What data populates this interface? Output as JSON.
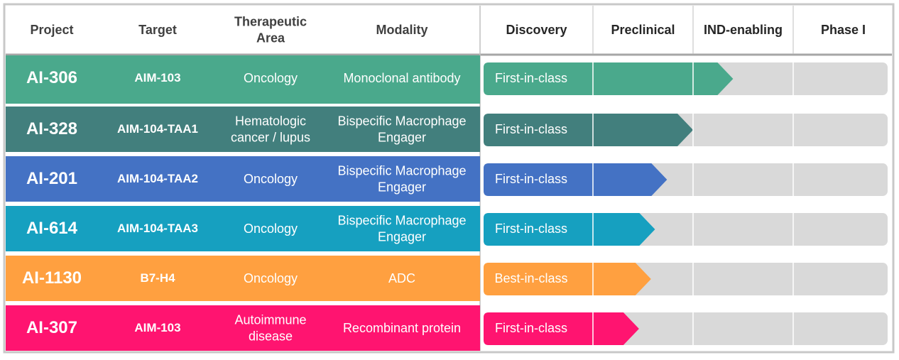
{
  "header": {
    "columns": [
      "Project",
      "Target",
      "Therapeutic\nArea",
      "Modality"
    ],
    "stages": [
      "Discovery",
      "Preclinical",
      "IND-enabling",
      "Phase I"
    ]
  },
  "rows": [
    {
      "project": "AI-306",
      "target": "AIM-103",
      "area": "Oncology",
      "modality": "Monoclonal antibody",
      "status": "First-in-class",
      "progress": 2.4,
      "color": "#4aa98c"
    },
    {
      "project": "AI-328",
      "target": "AIM-104-TAA1",
      "area": "Hematologic\ncancer / lupus",
      "modality": "Bispecific Macrophage\nEngager",
      "status": "First-in-class",
      "progress": 2.0,
      "color": "#427f7d"
    },
    {
      "project": "AI-201",
      "target": "AIM-104-TAA2",
      "area": "Oncology",
      "modality": "Bispecific Macrophage\nEngager",
      "status": "First-in-class",
      "progress": 1.74,
      "color": "#4472c4"
    },
    {
      "project": "AI-614",
      "target": "AIM-104-TAA3",
      "area": "Oncology",
      "modality": "Bispecific Macrophage\nEngager",
      "status": "First-in-class",
      "progress": 1.62,
      "color": "#16a0c0"
    },
    {
      "project": "AI-1130",
      "target": "B7-H4",
      "area": "Oncology",
      "modality": "ADC",
      "status": "Best-in-class",
      "progress": 1.58,
      "color": "#ffa040"
    },
    {
      "project": "AI-307",
      "target": "AIM-103",
      "area": "Autoimmune\ndisease",
      "modality": "Recombinant protein",
      "status": "First-in-class",
      "progress": 1.46,
      "color": "#ff1470"
    }
  ]
}
